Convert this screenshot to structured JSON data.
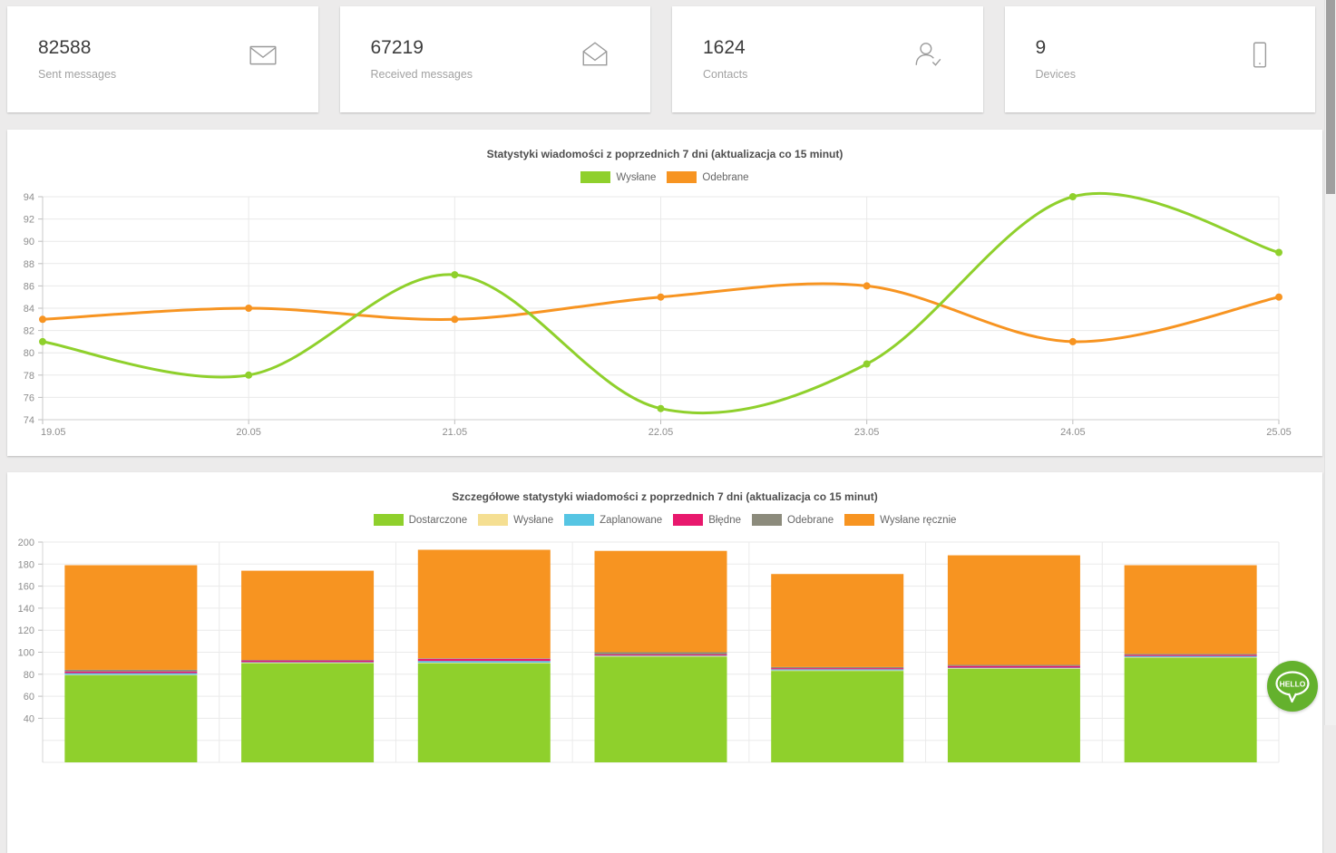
{
  "colors": {
    "background": "#ecebeb",
    "green": "#8fd02c",
    "orange": "#f79421",
    "pale_yellow": "#f5df92",
    "cyan": "#56c5e3",
    "pink": "#e8186d",
    "olive_gray": "#8c8b7c",
    "hello_green": "#64b12d",
    "axis_text": "#8d8d8d",
    "gridline": "#e9e9e9"
  },
  "cards": [
    {
      "value": "82588",
      "label": "Sent messages",
      "icon": "mail-icon"
    },
    {
      "value": "67219",
      "label": "Received messages",
      "icon": "mail-open-icon"
    },
    {
      "value": "1624",
      "label": "Contacts",
      "icon": "contact-check-icon"
    },
    {
      "value": "9",
      "label": "Devices",
      "icon": "device-icon"
    }
  ],
  "chart_data": [
    {
      "type": "line",
      "title": "Statystyki wiadomości z poprzednich 7 dni (aktualizacja co 15 minut)",
      "x": [
        "19.05",
        "20.05",
        "21.05",
        "22.05",
        "23.05",
        "24.05",
        "25.05"
      ],
      "series": [
        {
          "name": "Wysłane",
          "color": "#8fd02c",
          "values": [
            81,
            78,
            87,
            75,
            79,
            94,
            89
          ]
        },
        {
          "name": "Odebrane",
          "color": "#f79421",
          "values": [
            83,
            84,
            83,
            85,
            86,
            81,
            85
          ]
        }
      ],
      "ylim": [
        74,
        94
      ],
      "yticks": [
        "94",
        "92",
        "90",
        "88",
        "86",
        "84",
        "82",
        "80",
        "78",
        "76",
        "74"
      ],
      "grid": true,
      "legend_position": "top"
    },
    {
      "type": "stacked-bar",
      "title": "Szczegółowe statystyki wiadomości z poprzednich 7 dni (aktualizacja co 15 minut)",
      "num_categories": 7,
      "series": [
        {
          "name": "Dostarczone",
          "color": "#8fd02c",
          "values": [
            79,
            90,
            90,
            96,
            83,
            85,
            95
          ]
        },
        {
          "name": "Wysłane",
          "color": "#f5df92",
          "values": [
            0.5,
            0.5,
            0.5,
            0.5,
            0.5,
            0.5,
            0.5
          ]
        },
        {
          "name": "Zaplanowane",
          "color": "#56c5e3",
          "values": [
            1.5,
            0.5,
            1.5,
            0.5,
            1,
            0.5,
            1
          ]
        },
        {
          "name": "Błędne",
          "color": "#e8186d",
          "values": [
            1.5,
            1.5,
            2,
            1,
            1,
            1.5,
            1
          ]
        },
        {
          "name": "Odebrane",
          "color": "#8c8b7c",
          "values": [
            1.5,
            0.5,
            0.5,
            2,
            1,
            1,
            1
          ]
        },
        {
          "name": "Wysłane ręcznie",
          "color": "#f79421",
          "values": [
            95,
            81,
            98.5,
            92,
            84.5,
            99.5,
            80.5
          ]
        }
      ],
      "totals": [
        179,
        174,
        193,
        192,
        171,
        188,
        179
      ],
      "ylim": [
        0,
        200
      ],
      "yticks": [
        "200",
        "180",
        "160",
        "140",
        "120",
        "100",
        "80",
        "60",
        "40"
      ],
      "grid": true,
      "legend_position": "top"
    }
  ],
  "widgets": {
    "hello_label": "HELLO"
  }
}
